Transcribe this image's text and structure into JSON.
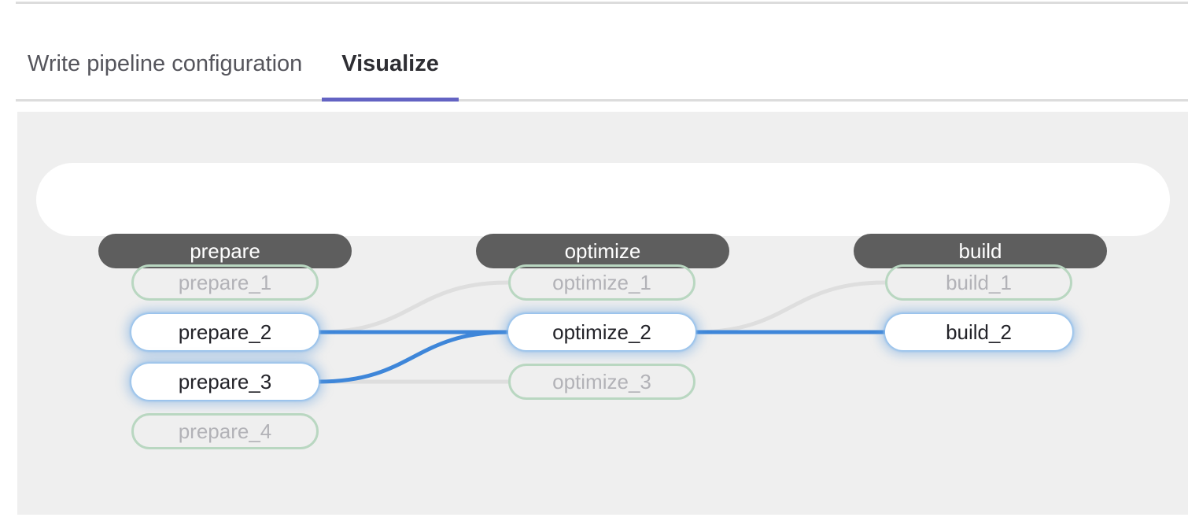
{
  "tabs": {
    "items": [
      {
        "label": "Write pipeline configuration",
        "active": false
      },
      {
        "label": "Visualize",
        "active": true
      }
    ]
  },
  "colors": {
    "accent_indigo": "#6363c3",
    "edge_highlight": "#3e86d9",
    "edge_dim": "#dedede",
    "node_dim_border": "#b9d7c1",
    "stage_pill_bg": "#5e5e5e",
    "panel_bg": "#efefef"
  },
  "pipeline": {
    "stages": [
      {
        "name": "prepare",
        "jobs": [
          {
            "name": "prepare_1",
            "state": "dim"
          },
          {
            "name": "prepare_2",
            "state": "highlight"
          },
          {
            "name": "prepare_3",
            "state": "highlight"
          },
          {
            "name": "prepare_4",
            "state": "dim"
          }
        ]
      },
      {
        "name": "optimize",
        "jobs": [
          {
            "name": "optimize_1",
            "state": "dim"
          },
          {
            "name": "optimize_2",
            "state": "highlight"
          },
          {
            "name": "optimize_3",
            "state": "dim"
          }
        ]
      },
      {
        "name": "build",
        "jobs": [
          {
            "name": "build_1",
            "state": "dim"
          },
          {
            "name": "build_2",
            "state": "highlight"
          }
        ]
      }
    ],
    "links": [
      {
        "from": "prepare_2",
        "to": "optimize_1",
        "state": "dim"
      },
      {
        "from": "prepare_3",
        "to": "optimize_3",
        "state": "dim"
      },
      {
        "from": "optimize_2",
        "to": "build_1",
        "state": "dim"
      },
      {
        "from": "prepare_2",
        "to": "optimize_2",
        "state": "highlight"
      },
      {
        "from": "prepare_3",
        "to": "optimize_2",
        "state": "highlight"
      },
      {
        "from": "optimize_2",
        "to": "build_2",
        "state": "highlight"
      }
    ]
  }
}
